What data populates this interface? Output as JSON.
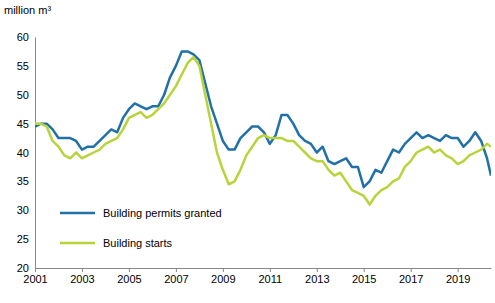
{
  "chart_data": {
    "type": "line",
    "ylabel": "million m³",
    "xlim": [
      2001,
      2020.42
    ],
    "xticks": [
      2001,
      2003,
      2005,
      2007,
      2009,
      2011,
      2013,
      2015,
      2017,
      2019
    ],
    "ylim": [
      20,
      60
    ],
    "yticks": [
      20,
      25,
      30,
      35,
      40,
      45,
      50,
      55,
      60
    ],
    "grid": false,
    "legend": "lower left",
    "x": [
      2001,
      2001.25,
      2001.5,
      2001.75,
      2002,
      2002.25,
      2002.5,
      2002.75,
      2003,
      2003.25,
      2003.5,
      2003.75,
      2004,
      2004.25,
      2004.5,
      2004.75,
      2005,
      2005.25,
      2005.5,
      2005.75,
      2006,
      2006.25,
      2006.5,
      2006.75,
      2007,
      2007.25,
      2007.5,
      2007.75,
      2008,
      2008.25,
      2008.5,
      2008.75,
      2009,
      2009.25,
      2009.5,
      2009.75,
      2010,
      2010.25,
      2010.5,
      2010.75,
      2011,
      2011.25,
      2011.5,
      2011.75,
      2012,
      2012.25,
      2012.5,
      2012.75,
      2013,
      2013.25,
      2013.5,
      2013.75,
      2014,
      2014.25,
      2014.5,
      2014.75,
      2015,
      2015.25,
      2015.5,
      2015.75,
      2016,
      2016.25,
      2016.5,
      2016.75,
      2017,
      2017.25,
      2017.5,
      2017.75,
      2018,
      2018.25,
      2018.5,
      2018.75,
      2019,
      2019.25,
      2019.5,
      2019.75,
      2020,
      2020.25,
      2020.42
    ],
    "series": [
      {
        "name": "Building permits granted",
        "color": "#2170a8",
        "values": [
          44.5,
          45,
          45,
          44,
          42.5,
          42.5,
          42.5,
          42,
          40.5,
          41,
          41,
          42,
          43,
          44,
          43.5,
          46,
          47.5,
          48.5,
          48,
          47.5,
          48,
          48,
          50,
          53,
          55,
          57.5,
          57.5,
          57,
          56,
          52,
          48,
          45,
          42,
          40.5,
          40.5,
          42.5,
          43.5,
          44.5,
          44.5,
          43.5,
          41.5,
          43,
          46.5,
          46.5,
          45,
          43,
          42,
          41.5,
          40,
          41,
          38.5,
          38,
          38.5,
          39,
          37.5,
          37.5,
          34,
          35,
          37,
          36.5,
          38.5,
          40.5,
          40,
          41.5,
          42.5,
          43.5,
          42.5,
          43,
          42.5,
          42,
          43,
          42.5,
          42.5,
          41,
          42,
          43.5,
          42,
          39,
          36
        ]
      },
      {
        "name": "Building starts",
        "color": "#b8d43a",
        "values": [
          45,
          45,
          44.5,
          42,
          41,
          39.5,
          39,
          40,
          39,
          39.5,
          40,
          40.5,
          41.5,
          42,
          42.5,
          44,
          46,
          46.5,
          47,
          46,
          46.5,
          47.5,
          48.5,
          50,
          51.5,
          53.5,
          55.5,
          56.5,
          55,
          50,
          45,
          40,
          37,
          34.5,
          35,
          37,
          39.5,
          41,
          42.5,
          43,
          42.5,
          42.5,
          42.5,
          42,
          42,
          41,
          40,
          39,
          38.5,
          38.5,
          37,
          36,
          36.5,
          35,
          33.5,
          33,
          32.5,
          31,
          32.5,
          33.5,
          34,
          35,
          35.5,
          37.5,
          38.5,
          40,
          40.5,
          41,
          40,
          40.5,
          39.5,
          39,
          38,
          38.5,
          39.5,
          40,
          40.5,
          41.5,
          41
        ]
      }
    ]
  }
}
